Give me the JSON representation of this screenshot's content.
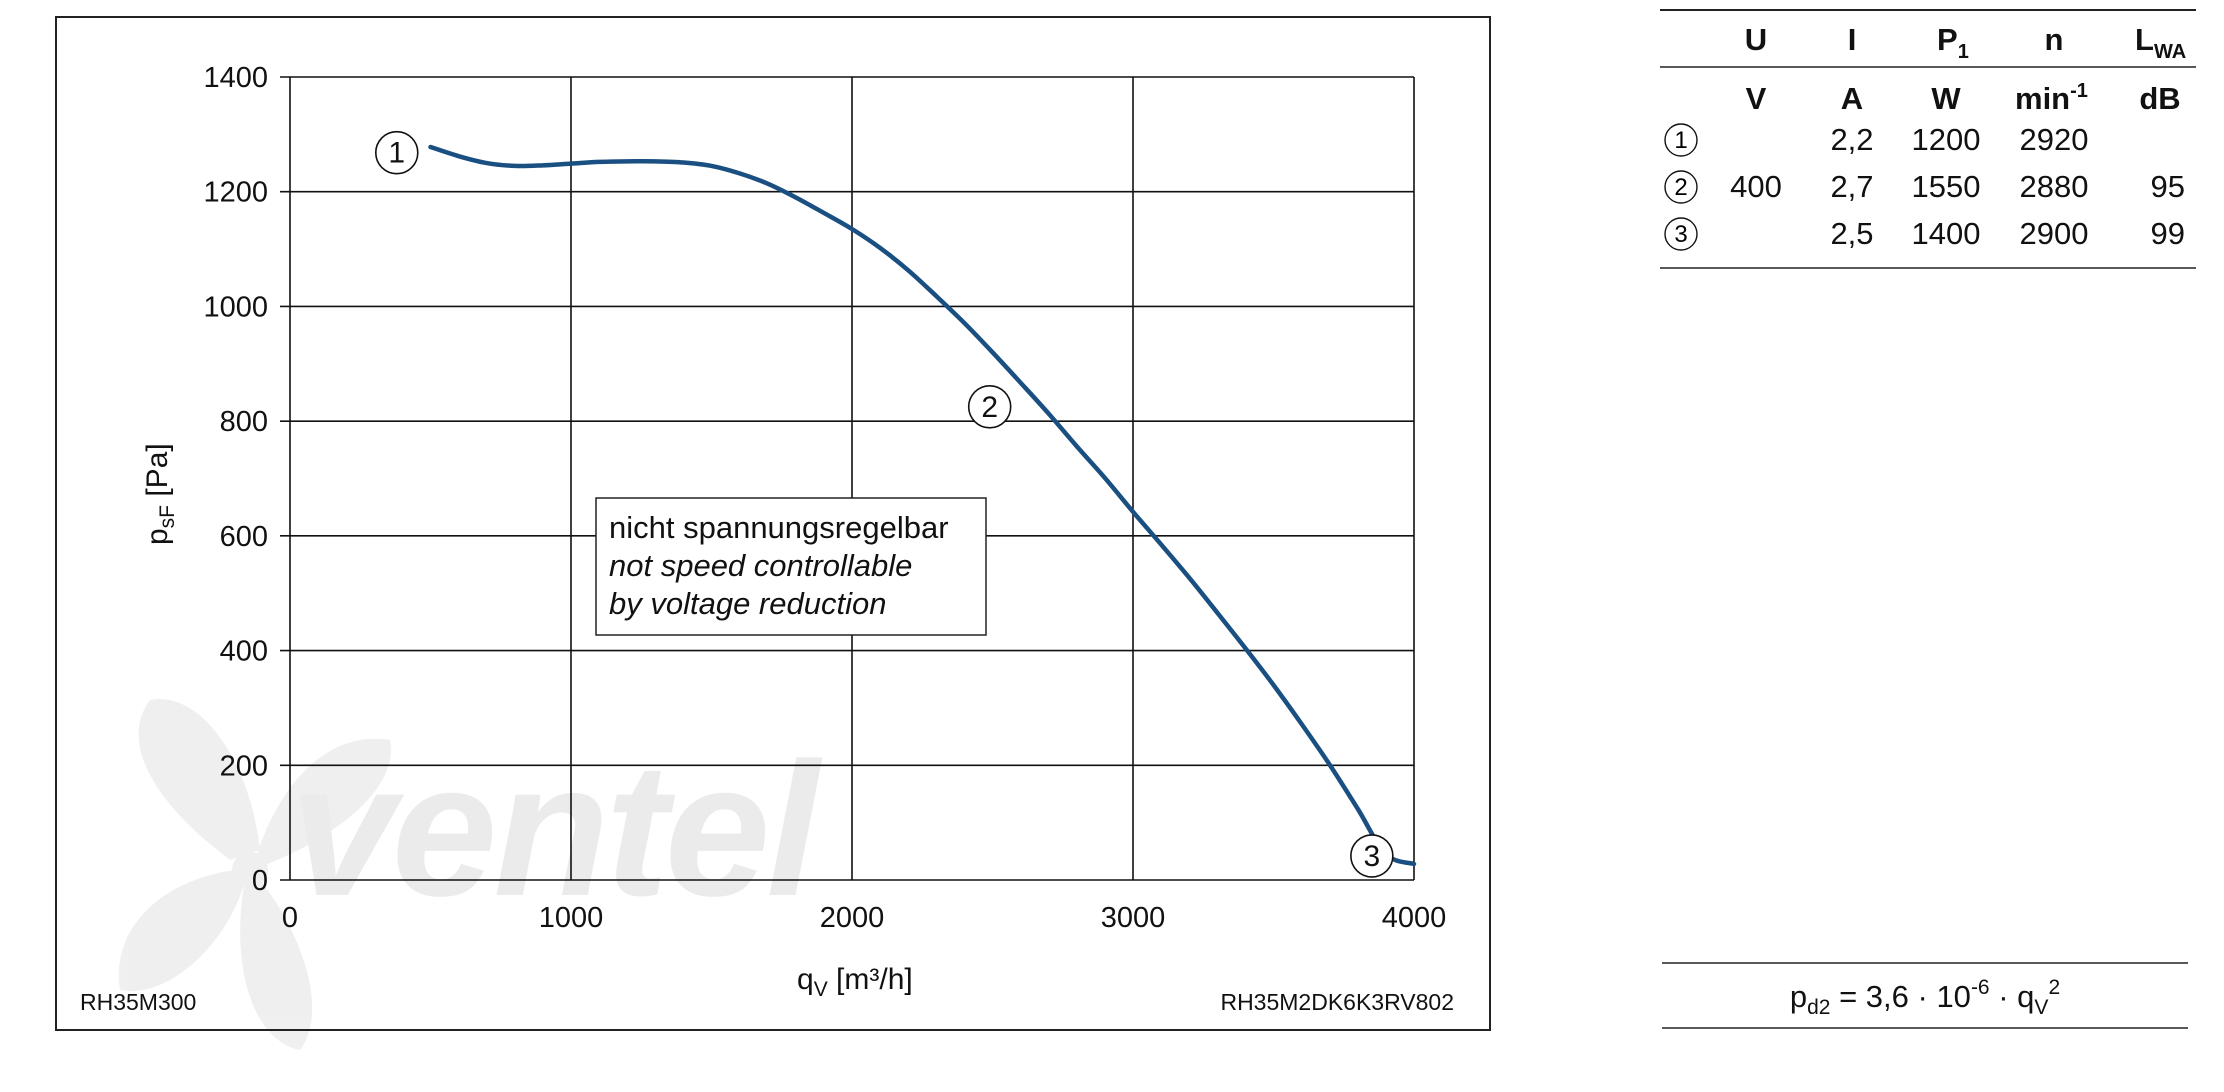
{
  "chart_data": {
    "type": "line",
    "title": "",
    "xlabel_main": "q",
    "xlabel_sub": "V",
    "xlabel_unit": " [m³/h]",
    "ylabel_main": "p",
    "ylabel_sub": "sF",
    "ylabel_unit": " [Pa]",
    "xlim": [
      0,
      4000
    ],
    "ylim": [
      0,
      1400
    ],
    "x_ticks": [
      0,
      1000,
      2000,
      3000,
      4000
    ],
    "y_ticks": [
      0,
      200,
      400,
      600,
      800,
      1000,
      1200,
      1400
    ],
    "grid": true,
    "series": [
      {
        "color": "#1a4f82",
        "x": [
          500,
          600,
          700,
          800,
          900,
          1000,
          1100,
          1200,
          1300,
          1400,
          1500,
          1600,
          1700,
          1800,
          1900,
          2000,
          2100,
          2200,
          2300,
          2400,
          2500,
          2600,
          2700,
          2800,
          2900,
          3000,
          3100,
          3200,
          3300,
          3400,
          3500,
          3600,
          3700,
          3800,
          3900,
          4000
        ],
        "y": [
          1278,
          1262,
          1250,
          1245,
          1246,
          1249,
          1252,
          1253,
          1253,
          1251,
          1245,
          1232,
          1214,
          1190,
          1163,
          1135,
          1102,
          1063,
          1018,
          971,
          920,
          867,
          813,
          756,
          701,
          642,
          585,
          527,
          466,
          404,
          340,
          272,
          201,
          124,
          45,
          28
        ]
      }
    ],
    "operating_points": [
      {
        "label": "1",
        "x": 380,
        "y": 1268
      },
      {
        "label": "2",
        "x": 2490,
        "y": 825
      },
      {
        "label": "3",
        "x": 3850,
        "y": 42
      }
    ],
    "annotation_lines": [
      "nicht spannungsregelbar",
      "not speed controllable",
      "by voltage reduction"
    ],
    "footer_left": "RH35M300",
    "footer_right": "RH35M2DK6K3RV802"
  },
  "watermark_text": "ventel",
  "table": {
    "header_symbols": [
      {
        "main": "U",
        "sub": "",
        "sup": ""
      },
      {
        "main": "I",
        "sub": "",
        "sup": ""
      },
      {
        "main": "P",
        "sub": "1",
        "sup": ""
      },
      {
        "main": "n",
        "sub": "",
        "sup": ""
      },
      {
        "main": "L",
        "sub": "WA",
        "sup": ""
      }
    ],
    "header_units": [
      {
        "main": "V",
        "sup": ""
      },
      {
        "main": "A",
        "sup": ""
      },
      {
        "main": "W",
        "sup": ""
      },
      {
        "main": "min",
        "sup": "-1"
      },
      {
        "main": "dB",
        "sup": ""
      }
    ],
    "rows": [
      {
        "marker": "1",
        "U": "",
        "I": "2,2",
        "P1": "1200",
        "n": "2920",
        "LWA": ""
      },
      {
        "marker": "2",
        "U": "400",
        "I": "2,7",
        "P1": "1550",
        "n": "2880",
        "LWA": "95"
      },
      {
        "marker": "3",
        "U": "",
        "I": "2,5",
        "P1": "1400",
        "n": "2900",
        "LWA": "99"
      }
    ]
  },
  "formula": {
    "p": "p",
    "p_sub": "d2",
    "mid": " = 3,6 · 10",
    "exp": "-6",
    "dot": " · q",
    "q_sub": "V",
    "q_sup": "2"
  }
}
